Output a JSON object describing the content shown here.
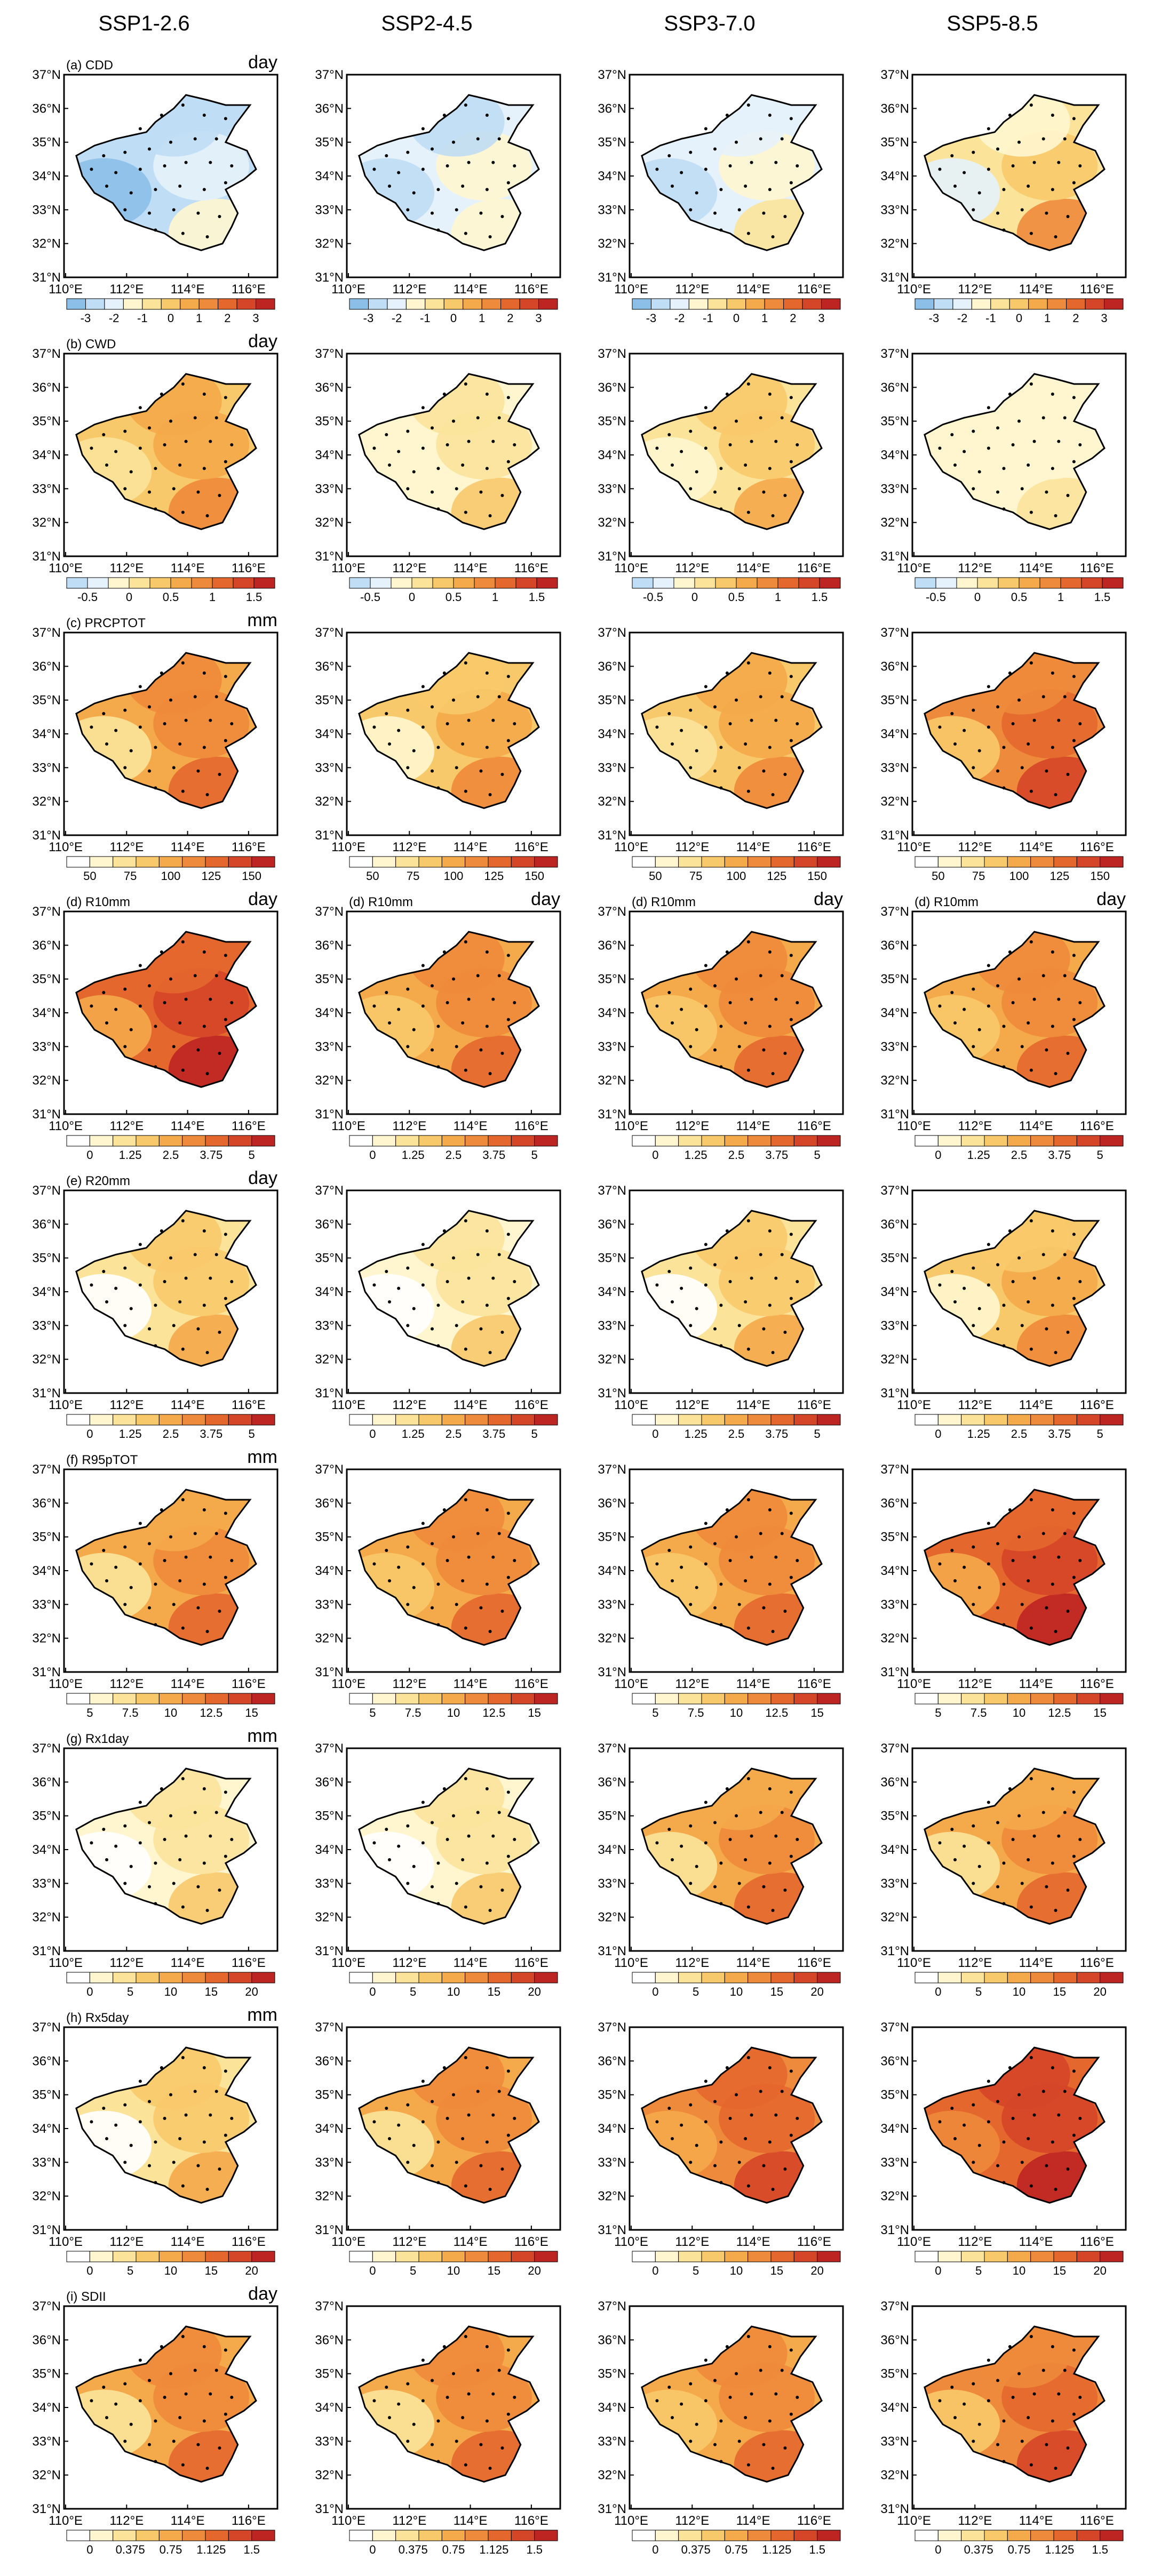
{
  "figure": {
    "scenarios": [
      "SSP1-2.6",
      "SSP2-4.5",
      "SSP3-7.0",
      "SSP5-8.5"
    ],
    "lat_labels": [
      "37°N",
      "36°N",
      "35°N",
      "34°N",
      "33°N",
      "32°N",
      "31°N"
    ],
    "lon_labels": [
      "110°E",
      "112°E",
      "114°E",
      "116°E"
    ],
    "colors": {
      "cold": [
        "#2f78c4",
        "#5a9bd9",
        "#8cbfe8",
        "#bfddf4",
        "#e6f2fb"
      ],
      "white": "#ffffff",
      "warm": [
        "#fff6cf",
        "#fbe39a",
        "#f8c96a",
        "#f4a94a",
        "#ee8a3b",
        "#e4672e",
        "#d54528",
        "#bd2522"
      ],
      "outline": "#000000"
    },
    "rows": [
      {
        "label": "(a) CDD",
        "unit": "day",
        "has_neg": true,
        "neg_bins": 3,
        "ticks": [
          "-3",
          "-2",
          "-1",
          "0",
          "1",
          "2",
          "3"
        ],
        "levels": [
          -0.55,
          -0.35,
          -0.25,
          0.15
        ]
      },
      {
        "label": "(b) CWD",
        "unit": "day",
        "has_neg": true,
        "neg_bins": 2,
        "ticks": [
          "-0.5",
          "0",
          "0.5",
          "1",
          "1.5"
        ],
        "levels": [
          0.35,
          0.05,
          0.2,
          -0.05
        ]
      },
      {
        "label": "(c) PRCPTOT",
        "unit": "mm",
        "has_neg": false,
        "ticks": [
          "50",
          "75",
          "100",
          "125",
          "150"
        ],
        "levels": [
          0.5,
          0.35,
          0.4,
          0.6
        ]
      },
      {
        "label": "(d) R10mm",
        "unit": "day",
        "has_neg": false,
        "ticks": [
          "0",
          "1.25",
          "2.5",
          "3.75",
          "5"
        ],
        "levels": [
          0.7,
          0.55,
          0.55,
          0.55
        ]
      },
      {
        "label": "(e) R20mm",
        "unit": "day",
        "has_neg": false,
        "ticks": [
          "0",
          "1.25",
          "2.5",
          "3.75",
          "5"
        ],
        "levels": [
          0.25,
          0.18,
          0.25,
          0.35
        ]
      },
      {
        "label": "(f) R95pTOT",
        "unit": "mm",
        "has_neg": false,
        "ticks": [
          "5",
          "7.5",
          "10",
          "12.5",
          "15"
        ],
        "levels": [
          0.45,
          0.55,
          0.55,
          0.7
        ]
      },
      {
        "label": "(g) Rx1day",
        "unit": "mm",
        "has_neg": false,
        "ticks": [
          "0",
          "5",
          "10",
          "15",
          "20"
        ],
        "levels": [
          0.12,
          0.15,
          0.45,
          0.45
        ]
      },
      {
        "label": "(h) Rx5day",
        "unit": "mm",
        "has_neg": false,
        "ticks": [
          "0",
          "5",
          "10",
          "15",
          "20"
        ],
        "levels": [
          0.25,
          0.5,
          0.65,
          0.8
        ]
      },
      {
        "label": "(i) SDII",
        "unit": "day",
        "has_neg": false,
        "ticks": [
          "0",
          "0.375",
          "0.75",
          "1.125",
          "1.5"
        ],
        "levels": [
          0.5,
          0.5,
          0.55,
          0.6
        ]
      }
    ]
  }
}
